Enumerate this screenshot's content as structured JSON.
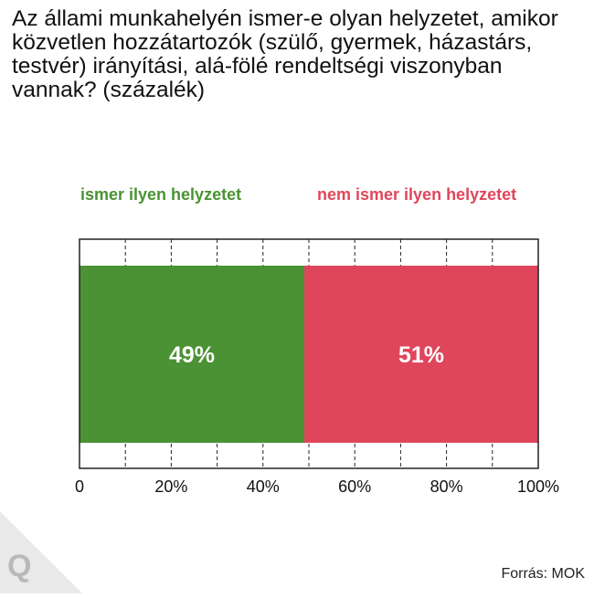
{
  "title": "Az állami munkahelyén ismer-e olyan helyzetet, amikor közvetlen hozzátartozók (szülő, gyermek, házastárs, testvér) irányítási, alá-fölé rendeltségi viszonyban vannak? (százalék)",
  "source": "Forrás: MOK",
  "logo_text": "Q",
  "colors": {
    "green": "#4a9233",
    "red": "#e0465b",
    "grid": "#222222"
  },
  "chart_data": {
    "type": "bar",
    "orientation": "horizontal-stacked",
    "series": [
      {
        "name": "ismer ilyen helyzetet",
        "value": 49,
        "label": "49%",
        "color": "#4a9233"
      },
      {
        "name": "nem ismer ilyen helyzetet",
        "value": 51,
        "label": "51%",
        "color": "#e0465b"
      }
    ],
    "xlim": [
      0,
      100
    ],
    "xticks": [
      {
        "value": 0,
        "label": "0"
      },
      {
        "value": 20,
        "label": "20%"
      },
      {
        "value": 40,
        "label": "40%"
      },
      {
        "value": 60,
        "label": "60%"
      },
      {
        "value": 80,
        "label": "80%"
      },
      {
        "value": 100,
        "label": "100%"
      }
    ],
    "grid": true,
    "legend_position": "top"
  }
}
